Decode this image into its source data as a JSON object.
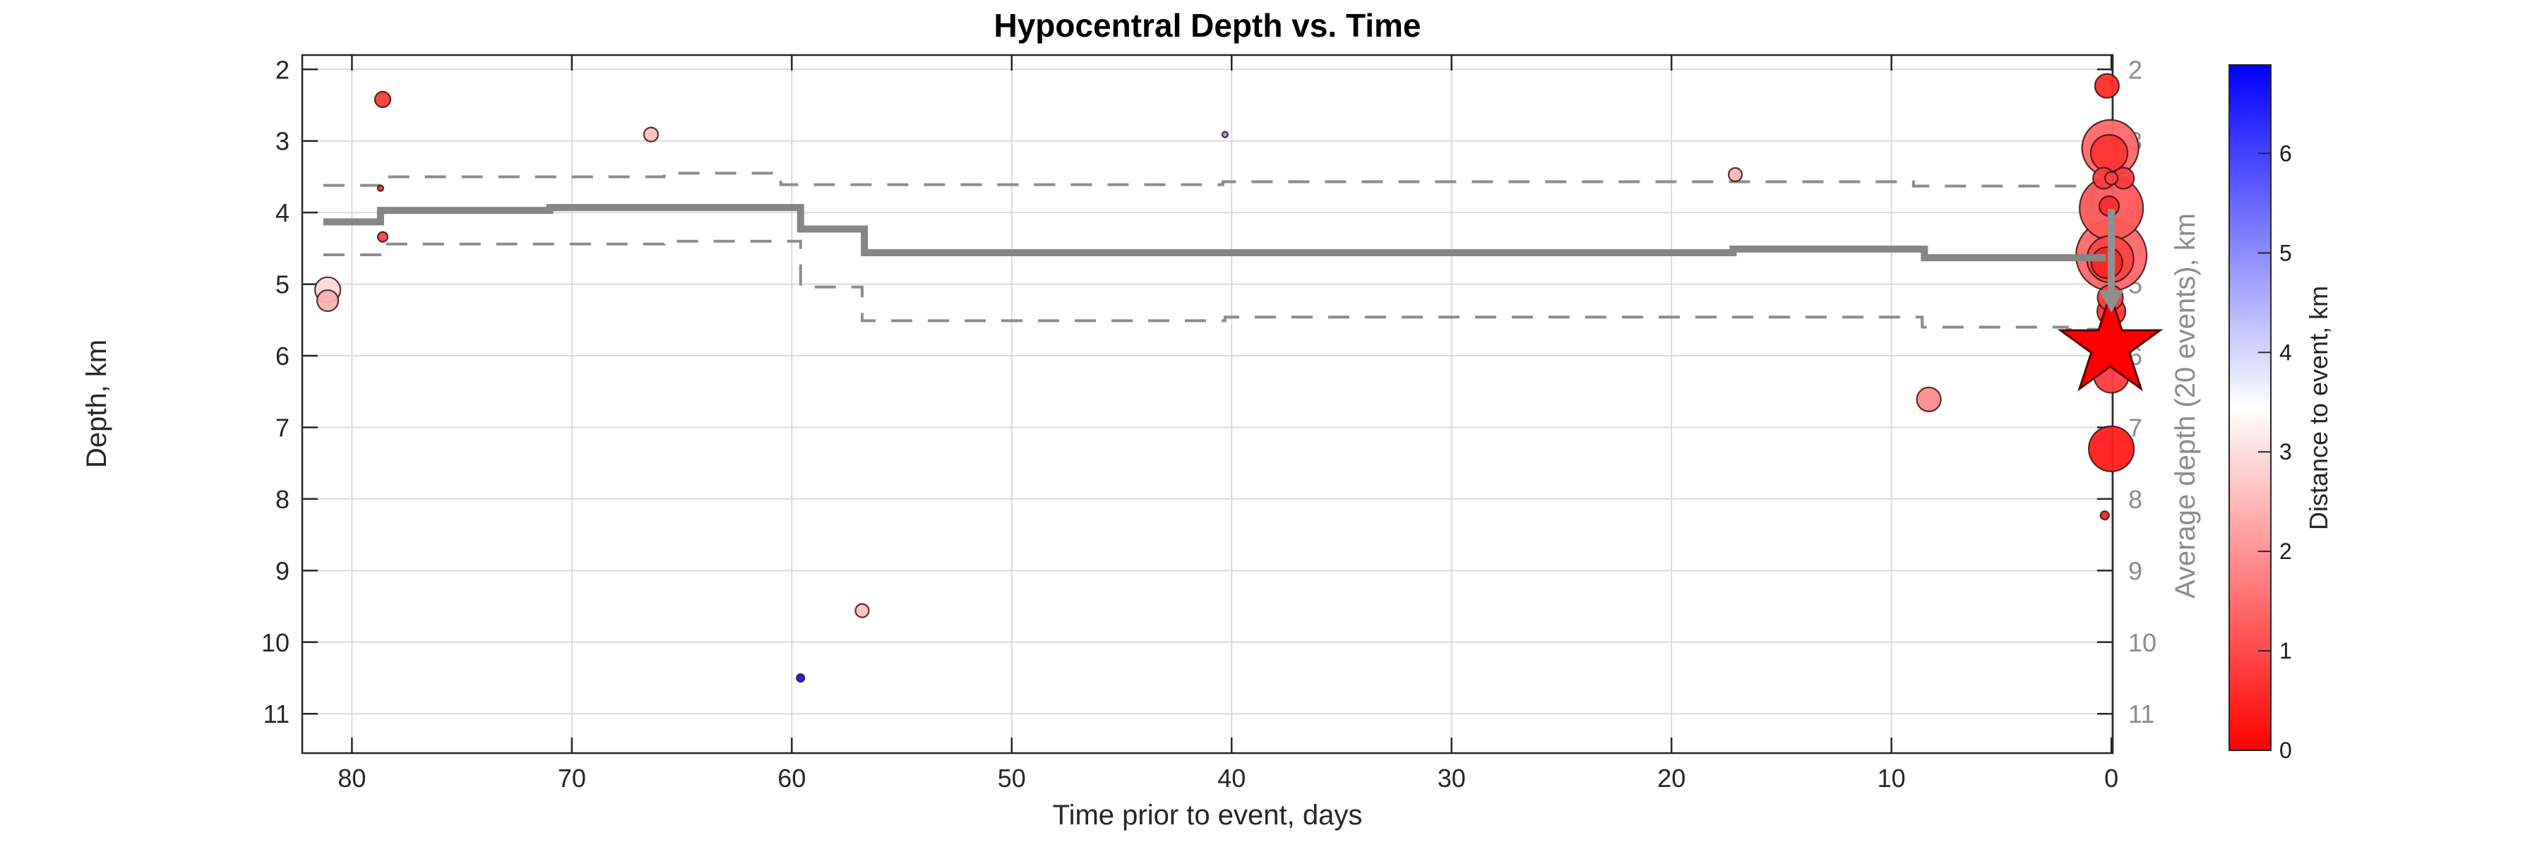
{
  "chart_data": {
    "type": "scatter",
    "title": "Hypocentral Depth vs. Time",
    "xlabel": "Time prior to event, days",
    "ylabel_left": "Depth, km",
    "ylabel_right": "Average depth (20 events), km",
    "x_axis": {
      "ticks": [
        80,
        70,
        60,
        50,
        40,
        30,
        20,
        10,
        0
      ],
      "range": [
        82.26,
        -0.06
      ],
      "reversed": true,
      "grid": true
    },
    "y_axis": {
      "ticks": [
        2,
        3,
        4,
        5,
        6,
        7,
        8,
        9,
        10,
        11
      ],
      "range": [
        1.8,
        11.55
      ],
      "increasing_down": true,
      "grid": true
    },
    "colorbar": {
      "label": "Distance to event, km",
      "vmin": 0,
      "vmax": 6.89,
      "ticks": [
        0,
        1,
        2,
        3,
        4,
        5,
        6
      ],
      "color_low": "#ff0000",
      "color_mid": "#ffffff",
      "color_high": "#0000ff"
    },
    "points": [
      {
        "t": 81.1,
        "depth": 5.08,
        "dist": 2.95,
        "r": 18
      },
      {
        "t": 81.1,
        "depth": 5.23,
        "dist": 2.4,
        "r": 15
      },
      {
        "t": 78.6,
        "depth": 2.42,
        "dist": 0.8,
        "r": 11
      },
      {
        "t": 78.7,
        "depth": 3.66,
        "dist": 0.7,
        "r": 4
      },
      {
        "t": 78.6,
        "depth": 4.34,
        "dist": 0.9,
        "r": 7
      },
      {
        "t": 66.4,
        "depth": 2.91,
        "dist": 2.6,
        "r": 10
      },
      {
        "t": 59.6,
        "depth": 10.5,
        "dist": 6.6,
        "r": 5.5
      },
      {
        "t": 56.8,
        "depth": 9.56,
        "dist": 2.6,
        "r": 9.5
      },
      {
        "t": 40.3,
        "depth": 2.91,
        "dist": 4.8,
        "r": 4
      },
      {
        "t": 17.1,
        "depth": 3.47,
        "dist": 2.5,
        "r": 9.5
      },
      {
        "t": 8.3,
        "depth": 6.61,
        "dist": 1.9,
        "r": 17
      },
      {
        "t": 0.2,
        "depth": 2.23,
        "dist": 0.6,
        "r": 17
      },
      {
        "t": 0.05,
        "depth": 3.1,
        "dist": 1.4,
        "r": 40
      },
      {
        "t": 0.1,
        "depth": 3.17,
        "dist": 0.7,
        "r": 26
      },
      {
        "t": 0.35,
        "depth": 3.52,
        "dist": 0.8,
        "r": 15
      },
      {
        "t": -0.55,
        "depth": 3.52,
        "dist": 0.8,
        "r": 15
      },
      {
        "t": 0.0,
        "depth": 3.52,
        "dist": 0.9,
        "r": 9
      },
      {
        "t": 0.0,
        "depth": 3.94,
        "dist": 1.2,
        "r": 45
      },
      {
        "t": 0.1,
        "depth": 3.91,
        "dist": 0.6,
        "r": 14
      },
      {
        "t": 0.0,
        "depth": 4.6,
        "dist": 1.4,
        "r": 50
      },
      {
        "t": 0.05,
        "depth": 4.65,
        "dist": 0.9,
        "r": 33
      },
      {
        "t": 0.2,
        "depth": 4.7,
        "dist": 0.5,
        "r": 22
      },
      {
        "t": 0.05,
        "depth": 5.19,
        "dist": 0.8,
        "r": 18
      },
      {
        "t": 0.0,
        "depth": 5.38,
        "dist": 0.7,
        "r": 20
      },
      {
        "t": 0.0,
        "depth": 6.27,
        "dist": 0.8,
        "r": 25
      },
      {
        "t": 0.0,
        "depth": 7.3,
        "dist": 0.4,
        "r": 32
      },
      {
        "t": 0.3,
        "depth": 8.23,
        "dist": 0.5,
        "r": 6
      }
    ],
    "mainshock": {
      "t": 0.05,
      "depth": 5.87,
      "dist": 0,
      "marker": "star",
      "outer_r": 74
    },
    "avg_line_segments": [
      [
        81.3,
        78.7,
        4.13
      ],
      [
        78.7,
        71.0,
        3.97
      ],
      [
        71.0,
        59.6,
        3.93
      ],
      [
        59.6,
        56.7,
        4.23
      ],
      [
        56.7,
        17.2,
        4.56
      ],
      [
        17.2,
        8.5,
        4.51
      ],
      [
        8.5,
        0.25,
        4.63
      ]
    ],
    "upper_bound_segments": [
      [
        81.3,
        78.6,
        3.62
      ],
      [
        78.6,
        65.8,
        3.5
      ],
      [
        65.8,
        60.5,
        3.45
      ],
      [
        60.5,
        40.4,
        3.61
      ],
      [
        40.4,
        9.0,
        3.57
      ],
      [
        9.0,
        0.9,
        3.63
      ],
      [
        0.9,
        0.6,
        4.35
      ]
    ],
    "lower_bound_segments": [
      [
        81.3,
        78.6,
        4.59
      ],
      [
        78.6,
        65.8,
        4.44
      ],
      [
        65.8,
        59.6,
        4.4
      ],
      [
        59.6,
        56.8,
        5.04
      ],
      [
        56.8,
        40.3,
        5.51
      ],
      [
        40.3,
        8.6,
        5.46
      ],
      [
        8.6,
        2.0,
        5.6
      ],
      [
        2.0,
        0.2,
        5.63
      ]
    ],
    "event_arrow": {
      "t": 0.0,
      "from_depth": 3.95,
      "to_depth": 5.4
    },
    "style_colors": {
      "avg_line": "#868686",
      "bound_line": "#8c8c8c",
      "grid": "#dbdbdb",
      "spine": "#262626",
      "marker_edge": "#3c1010",
      "arrow": "#909090"
    }
  }
}
